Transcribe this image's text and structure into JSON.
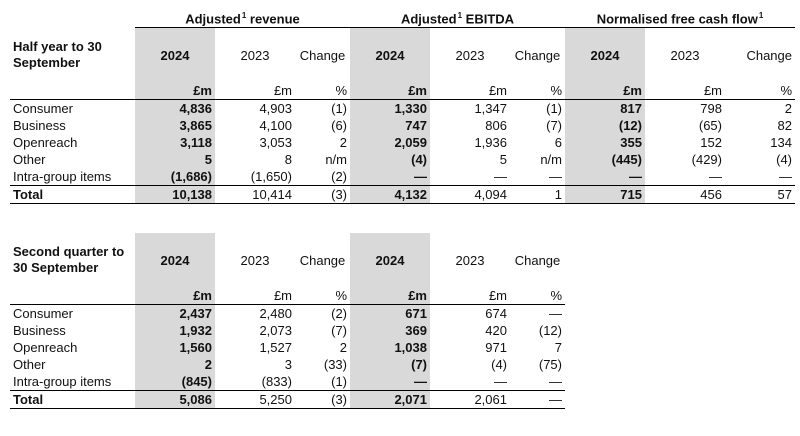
{
  "groups": {
    "revenue": "Adjusted",
    "ebitda": "Adjusted",
    "fcf": "Normalised free cash flow",
    "revenue_tail": "revenue",
    "ebitda_tail": "EBITDA",
    "sup": "1"
  },
  "headers": {
    "y2024": "2024",
    "y2023": "2023",
    "change": "Change",
    "unit": "£m",
    "pct": "%"
  },
  "half_year": {
    "period": "Half year to 30 September",
    "rows": [
      {
        "label": "Consumer",
        "r24": "4,836",
        "r23": "4,903",
        "rc": "(1)",
        "e24": "1,330",
        "e23": "1,347",
        "ec": "(1)",
        "f24": "817",
        "f23": "798",
        "fc": "2"
      },
      {
        "label": "Business",
        "r24": "3,865",
        "r23": "4,100",
        "rc": "(6)",
        "e24": "747",
        "e23": "806",
        "ec": "(7)",
        "f24": "(12)",
        "f23": "(65)",
        "fc": "82"
      },
      {
        "label": "Openreach",
        "r24": "3,118",
        "r23": "3,053",
        "rc": "2",
        "e24": "2,059",
        "e23": "1,936",
        "ec": "6",
        "f24": "355",
        "f23": "152",
        "fc": "134"
      },
      {
        "label": "Other",
        "r24": "5",
        "r23": "8",
        "rc": "n/m",
        "e24": "(4)",
        "e23": "5",
        "ec": "n/m",
        "f24": "(445)",
        "f23": "(429)",
        "fc": "(4)"
      },
      {
        "label": "Intra-group items",
        "r24": "(1,686)",
        "r23": "(1,650)",
        "rc": "(2)",
        "e24": "—",
        "e23": "—",
        "ec": "—",
        "f24": "—",
        "f23": "—",
        "fc": "—"
      }
    ],
    "total": {
      "label": "Total",
      "r24": "10,138",
      "r23": "10,414",
      "rc": "(3)",
      "e24": "4,132",
      "e23": "4,094",
      "ec": "1",
      "f24": "715",
      "f23": "456",
      "fc": "57"
    }
  },
  "second_quarter": {
    "period": "Second quarter to 30 September",
    "rows": [
      {
        "label": "Consumer",
        "r24": "2,437",
        "r23": "2,480",
        "rc": "(2)",
        "e24": "671",
        "e23": "674",
        "ec": "—"
      },
      {
        "label": "Business",
        "r24": "1,932",
        "r23": "2,073",
        "rc": "(7)",
        "e24": "369",
        "e23": "420",
        "ec": "(12)"
      },
      {
        "label": "Openreach",
        "r24": "1,560",
        "r23": "1,527",
        "rc": "2",
        "e24": "1,038",
        "e23": "971",
        "ec": "7"
      },
      {
        "label": "Other",
        "r24": "2",
        "r23": "3",
        "rc": "(33)",
        "e24": "(7)",
        "e23": "(4)",
        "ec": "(75)"
      },
      {
        "label": "Intra-group items",
        "r24": "(845)",
        "r23": "(833)",
        "rc": "(1)",
        "e24": "—",
        "e23": "—",
        "ec": "—"
      }
    ],
    "total": {
      "label": "Total",
      "r24": "5,086",
      "r23": "5,250",
      "rc": "(3)",
      "e24": "2,071",
      "e23": "2,061",
      "ec": "—"
    }
  }
}
